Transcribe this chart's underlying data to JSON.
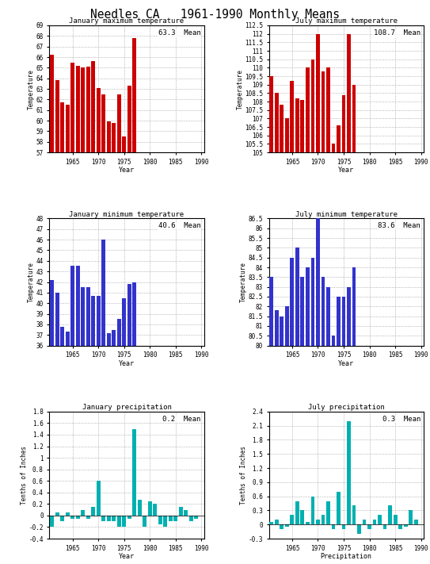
{
  "title": "Needles CA   1961-1990 Monthly Means",
  "years": [
    1961,
    1962,
    1963,
    1964,
    1965,
    1966,
    1967,
    1968,
    1969,
    1970,
    1971,
    1972,
    1973,
    1974,
    1975,
    1976,
    1977,
    1978,
    1979,
    1980,
    1981,
    1982,
    1983,
    1984,
    1985,
    1986,
    1987,
    1988,
    1989,
    1990
  ],
  "jan_max": [
    66.2,
    63.8,
    61.7,
    61.5,
    65.5,
    65.2,
    65.0,
    65.1,
    65.6,
    63.1,
    62.5,
    59.9,
    59.8,
    62.5,
    58.5,
    63.3,
    67.8,
    null,
    null,
    null,
    null,
    null,
    null,
    null,
    null,
    null,
    null,
    null,
    null,
    null
  ],
  "jul_max": [
    109.5,
    108.5,
    107.8,
    107.0,
    109.2,
    108.2,
    108.1,
    110.0,
    110.5,
    112.0,
    109.8,
    110.0,
    105.5,
    106.6,
    108.4,
    112.0,
    109.0,
    null,
    null,
    null,
    null,
    null,
    null,
    null,
    null,
    null,
    null,
    null,
    null,
    null
  ],
  "jan_min": [
    42.2,
    41.0,
    37.8,
    37.3,
    43.5,
    43.5,
    41.5,
    41.5,
    40.7,
    40.7,
    46.0,
    37.2,
    37.5,
    38.5,
    40.5,
    41.8,
    42.0,
    null,
    null,
    null,
    null,
    null,
    null,
    null,
    null,
    null,
    null,
    null,
    null,
    null
  ],
  "jul_min": [
    83.5,
    81.8,
    81.5,
    82.0,
    84.5,
    85.0,
    83.5,
    84.0,
    84.5,
    86.5,
    83.5,
    83.0,
    80.5,
    82.5,
    82.5,
    83.0,
    84.0,
    null,
    null,
    null,
    null,
    null,
    null,
    null,
    null,
    null,
    null,
    null,
    null,
    null
  ],
  "jan_precip": [
    -0.2,
    0.05,
    -0.1,
    0.05,
    -0.05,
    -0.05,
    0.1,
    -0.05,
    0.15,
    0.6,
    -0.1,
    -0.1,
    -0.1,
    -0.2,
    -0.2,
    -0.05,
    1.5,
    0.28,
    -0.2,
    0.25,
    0.2,
    -0.15,
    -0.2,
    -0.1,
    -0.1,
    0.15,
    0.1,
    -0.1,
    -0.05,
    0.0
  ],
  "jul_precip": [
    0.05,
    0.1,
    -0.1,
    -0.05,
    0.2,
    0.5,
    0.3,
    0.05,
    0.6,
    0.1,
    0.2,
    0.5,
    -0.1,
    0.7,
    -0.1,
    2.2,
    0.4,
    -0.2,
    0.1,
    -0.1,
    0.1,
    0.2,
    -0.1,
    0.4,
    0.2,
    -0.1,
    -0.05,
    0.3,
    0.1,
    0.0
  ],
  "jan_max_mean": 63.3,
  "jul_max_mean": 108.7,
  "jan_min_mean": 40.6,
  "jul_min_mean": 83.6,
  "jan_precip_mean": 0.2,
  "jul_precip_mean": 0.3,
  "jan_max_ylim": [
    57,
    69
  ],
  "jan_max_yticks": [
    57,
    58,
    59,
    60,
    61,
    62,
    63,
    64,
    65,
    66,
    67,
    68,
    69
  ],
  "jul_max_ylim": [
    105,
    112.5
  ],
  "jul_max_yticks": [
    105,
    105.5,
    106,
    106.5,
    107,
    107.5,
    108,
    108.5,
    109,
    109.5,
    110,
    110.5,
    111,
    111.5,
    112,
    112.5
  ],
  "jan_min_ylim": [
    36,
    48
  ],
  "jan_min_yticks": [
    36,
    37,
    38,
    39,
    40,
    41,
    42,
    43,
    44,
    45,
    46,
    47,
    48
  ],
  "jul_min_ylim": [
    80,
    86.5
  ],
  "jul_min_yticks": [
    80,
    80.5,
    81,
    81.5,
    82,
    82.5,
    83,
    83.5,
    84,
    84.5,
    85,
    85.5,
    86,
    86.5
  ],
  "jan_precip_ylim": [
    -0.4,
    1.8
  ],
  "jan_precip_yticks": [
    -0.4,
    -0.2,
    0,
    0.2,
    0.4,
    0.6,
    0.8,
    1.0,
    1.2,
    1.4,
    1.6,
    1.8
  ],
  "jul_precip_ylim": [
    -0.3,
    2.4
  ],
  "jul_precip_yticks": [
    -0.3,
    0,
    0.3,
    0.6,
    0.9,
    1.2,
    1.5,
    1.8,
    2.1,
    2.4
  ],
  "bar_color_red": "#cc0000",
  "bar_color_blue": "#3333cc",
  "bar_color_teal": "#00b0b0",
  "bg_color": "#ffffff",
  "grid_color": "#888888"
}
